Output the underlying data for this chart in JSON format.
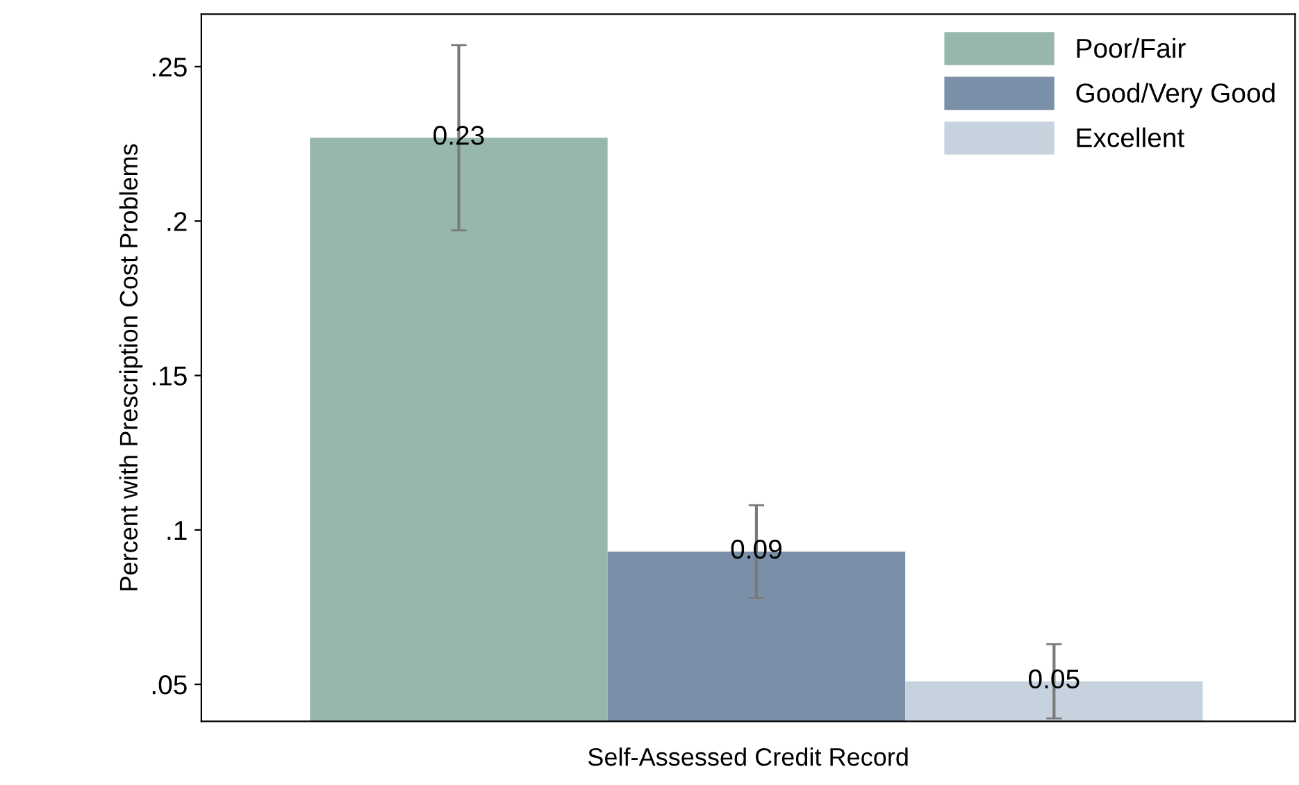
{
  "chart_data": {
    "type": "bar",
    "xlabel": "Self-Assessed Credit Record",
    "ylabel": "Percent with Prescription Cost Problems",
    "categories": [
      null,
      null,
      null
    ],
    "series": [
      {
        "name": "Poor/Fair",
        "color": "#97b6ae",
        "values": [
          0.227,
          null,
          null
        ],
        "errors": [
          [
            0.197,
            0.257
          ],
          null,
          null
        ],
        "value_labels": [
          "0.23",
          null,
          null
        ]
      },
      {
        "name": "Good/Very Good",
        "color": "#7a90a8",
        "values": [
          null,
          0.093,
          null
        ],
        "errors": [
          null,
          [
            0.078,
            0.108
          ],
          null
        ],
        "value_labels": [
          null,
          "0.09",
          null
        ]
      },
      {
        "name": "Excellent",
        "color": "#c6d3df",
        "values": [
          null,
          null,
          0.051
        ],
        "errors": [
          null,
          null,
          [
            0.039,
            0.063
          ]
        ],
        "value_labels": [
          null,
          null,
          "0.05"
        ]
      }
    ],
    "ylim": [
      0.038,
      0.267
    ],
    "yticks": [
      {
        "value": 0.05,
        "label": ".05"
      },
      {
        "value": 0.1,
        "label": ".1"
      },
      {
        "value": 0.15,
        "label": ".15"
      },
      {
        "value": 0.2,
        "label": ".2"
      },
      {
        "value": 0.25,
        "label": ".25"
      }
    ],
    "grid": false,
    "legend": "top right"
  }
}
